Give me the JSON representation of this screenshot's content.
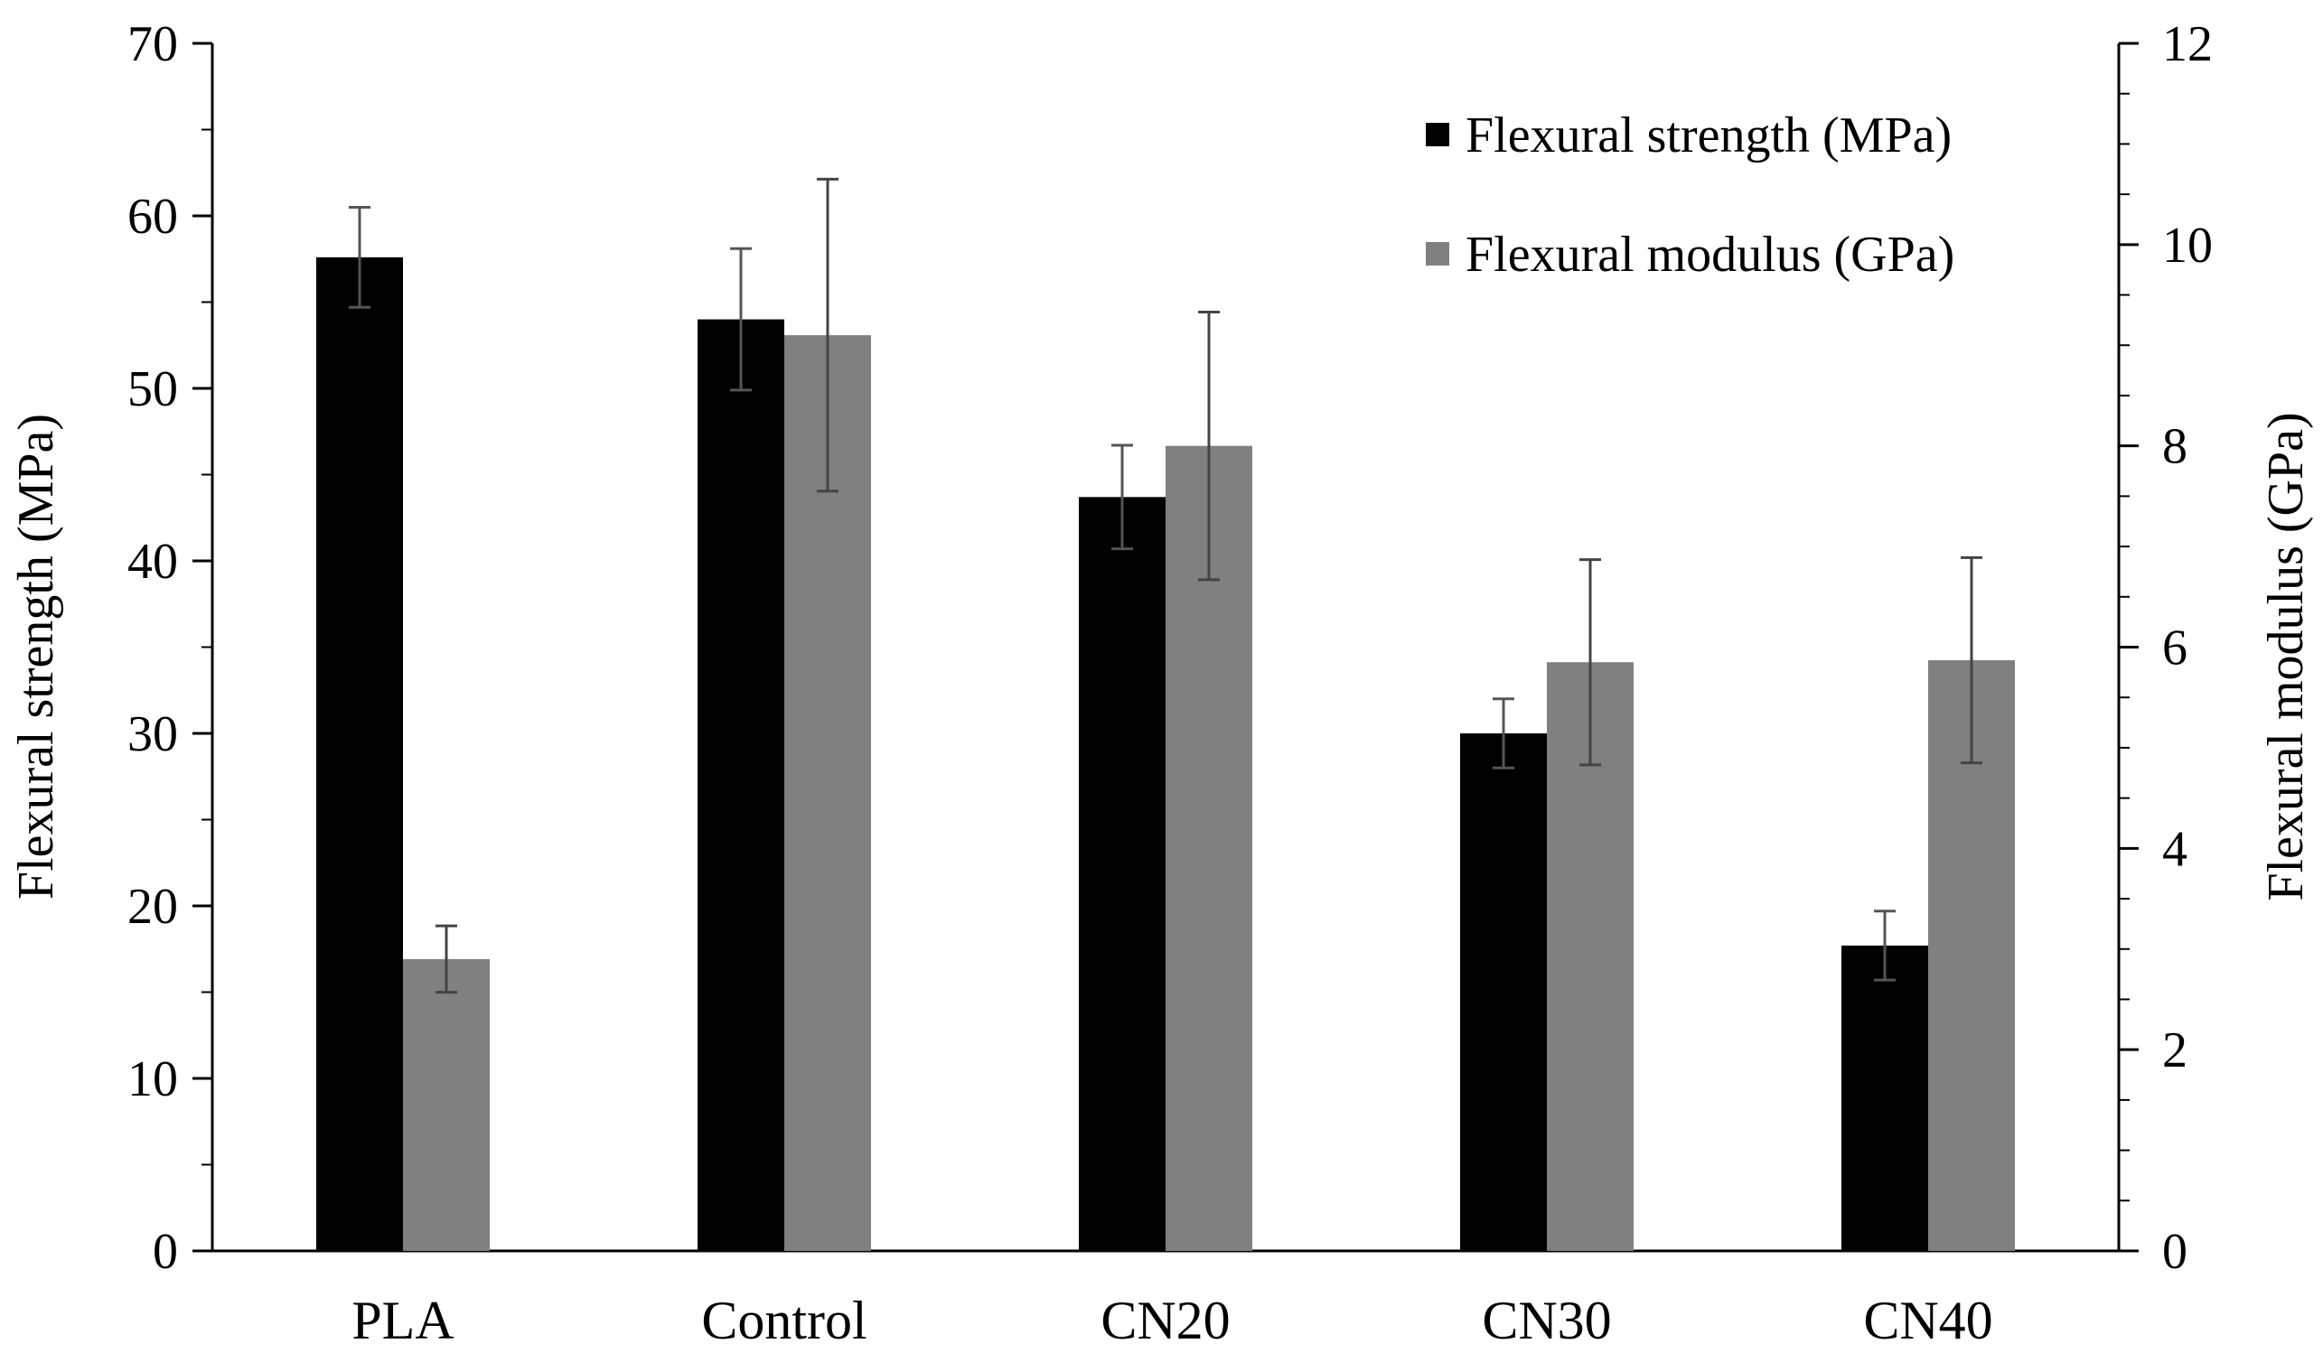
{
  "chart_data": {
    "type": "bar",
    "title": "",
    "categories": [
      "PLA",
      "Control",
      "CN20",
      "CN30",
      "CN40"
    ],
    "xlabel": "",
    "ylabel": "Flexural strength (MPa)",
    "y2label": "Flexural modulus (GPa)",
    "ylim": [
      0,
      70
    ],
    "y2lim": [
      0,
      12
    ],
    "yticks": [
      0,
      10,
      20,
      30,
      40,
      50,
      60,
      70
    ],
    "y2ticks": [
      0,
      2,
      4,
      6,
      8,
      10,
      12
    ],
    "grid": false,
    "legend_position": "top-right",
    "series": [
      {
        "name": "Flexural strength (MPa)",
        "axis": "left",
        "color": "#000000",
        "values": [
          57.6,
          54.0,
          43.7,
          30.0,
          17.7
        ],
        "errors": [
          2.9,
          4.1,
          3.0,
          2.0,
          2.0
        ]
      },
      {
        "name": "Flexural modulus (GPa)",
        "axis": "right",
        "color": "#808080",
        "values": [
          2.9,
          9.1,
          8.0,
          5.85,
          5.87
        ],
        "errors": [
          0.33,
          1.55,
          1.33,
          1.02,
          1.02
        ]
      }
    ]
  }
}
